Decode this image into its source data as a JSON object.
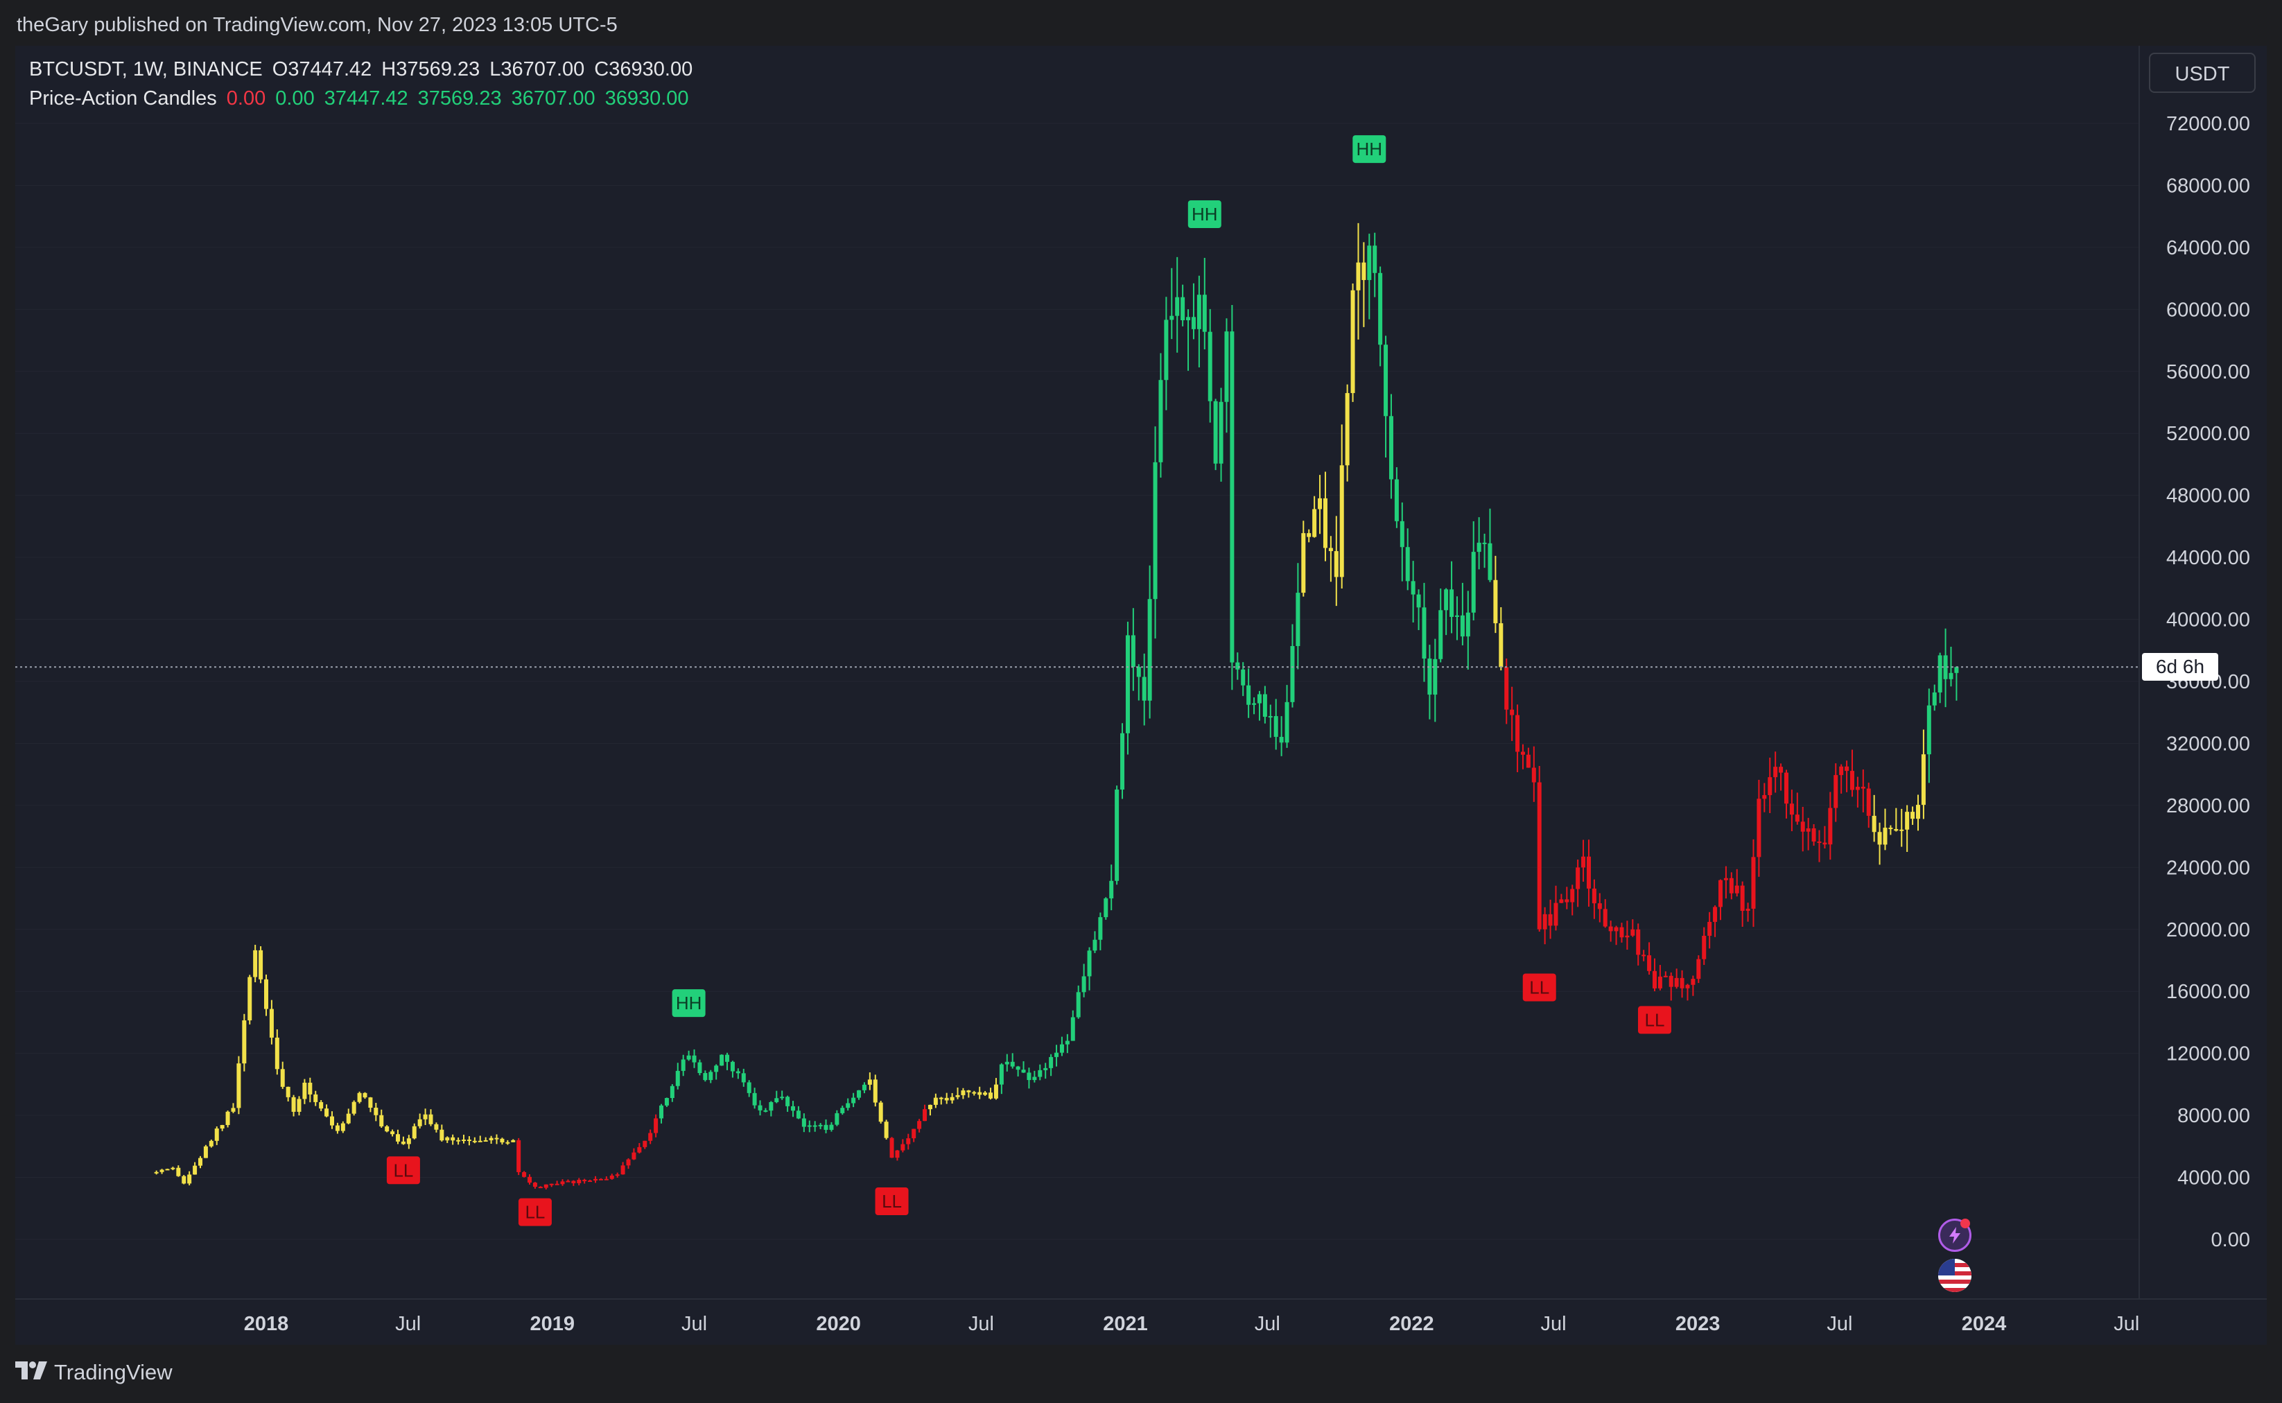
{
  "header": {
    "published_line": "theGary published on TradingView.com, Nov 27, 2023 13:05 UTC-5"
  },
  "legend": {
    "symbol_line": [
      "BTCUSDT, 1W, BINANCE",
      "O37447.42",
      "H37569.23",
      "L36707.00",
      "C36930.00"
    ],
    "indicator_name": "Price-Action Candles",
    "indicator_values": [
      {
        "text": "0.00",
        "color": "#f23645"
      },
      {
        "text": "0.00",
        "color": "#22d07a"
      },
      {
        "text": "37447.42",
        "color": "#22d07a"
      },
      {
        "text": "37569.23",
        "color": "#22d07a"
      },
      {
        "text": "36707.00",
        "color": "#22d07a"
      },
      {
        "text": "36930.00",
        "color": "#22d07a"
      }
    ]
  },
  "toolbar": {
    "currency_label": "USDT",
    "countdown_label": "6d 6h"
  },
  "icons": {
    "alert": "lightning-icon",
    "flag": "us-flag-icon",
    "logo": "tradingview-logo-icon"
  },
  "footer": {
    "brand": "TradingView"
  },
  "colors": {
    "background": "#1c1f2a",
    "bull": "#22d07a",
    "bear": "#e8141d",
    "neutral": "#f2e14a",
    "axis_text": "#d1d4dc"
  },
  "chart_data": {
    "type": "candlestick",
    "title": "BTCUSDT, 1W, BINANCE",
    "x_start": "2017-08-14",
    "x_end": "2023-11-27",
    "x_ticks": [
      {
        "date": "2018-01-01",
        "label": "2018",
        "bold": true
      },
      {
        "date": "2018-07-01",
        "label": "Jul",
        "bold": false
      },
      {
        "date": "2019-01-01",
        "label": "2019",
        "bold": true
      },
      {
        "date": "2019-07-01",
        "label": "Jul",
        "bold": false
      },
      {
        "date": "2020-01-01",
        "label": "2020",
        "bold": true
      },
      {
        "date": "2020-07-01",
        "label": "Jul",
        "bold": false
      },
      {
        "date": "2021-01-01",
        "label": "2021",
        "bold": true
      },
      {
        "date": "2021-07-01",
        "label": "Jul",
        "bold": false
      },
      {
        "date": "2022-01-01",
        "label": "2022",
        "bold": true
      },
      {
        "date": "2022-07-01",
        "label": "Jul",
        "bold": false
      },
      {
        "date": "2023-01-01",
        "label": "2023",
        "bold": true
      },
      {
        "date": "2023-07-01",
        "label": "Jul",
        "bold": false
      },
      {
        "date": "2024-01-01",
        "label": "2024",
        "bold": true
      },
      {
        "date": "2024-07-01",
        "label": "Jul",
        "bold": false
      }
    ],
    "y_ticks": [
      "72000.00",
      "68000.00",
      "64000.00",
      "60000.00",
      "56000.00",
      "52000.00",
      "48000.00",
      "44000.00",
      "40000.00",
      "36000.00",
      "32000.00",
      "28000.00",
      "24000.00",
      "20000.00",
      "16000.00",
      "12000.00",
      "8000.00",
      "4000.00",
      "0.00"
    ],
    "ylim": [
      0,
      72000
    ],
    "current_price": 36930,
    "path": [
      {
        "date": "2017-08-14",
        "close": 4300,
        "state": "neutral"
      },
      {
        "date": "2017-09-04",
        "close": 4500,
        "state": "neutral"
      },
      {
        "date": "2017-09-18",
        "close": 3600,
        "state": "neutral"
      },
      {
        "date": "2017-10-09",
        "close": 5300,
        "state": "neutral"
      },
      {
        "date": "2017-10-30",
        "close": 7000,
        "state": "neutral"
      },
      {
        "date": "2017-11-20",
        "close": 8500,
        "state": "neutral"
      },
      {
        "date": "2017-12-04",
        "close": 14000,
        "state": "neutral"
      },
      {
        "date": "2017-12-18",
        "close": 19000,
        "state": "neutral"
      },
      {
        "date": "2018-01-01",
        "close": 15000,
        "state": "neutral"
      },
      {
        "date": "2018-01-15",
        "close": 11000,
        "state": "neutral"
      },
      {
        "date": "2018-02-05",
        "close": 8000,
        "state": "neutral"
      },
      {
        "date": "2018-02-19",
        "close": 10000,
        "state": "neutral"
      },
      {
        "date": "2018-03-12",
        "close": 8500,
        "state": "neutral"
      },
      {
        "date": "2018-04-02",
        "close": 6900,
        "state": "neutral"
      },
      {
        "date": "2018-05-01",
        "close": 9500,
        "state": "neutral"
      },
      {
        "date": "2018-06-01",
        "close": 7200,
        "state": "neutral"
      },
      {
        "date": "2018-06-25",
        "close": 6200,
        "state": "neutral"
      },
      {
        "date": "2018-07-23",
        "close": 8200,
        "state": "neutral"
      },
      {
        "date": "2018-08-13",
        "close": 6400,
        "state": "neutral"
      },
      {
        "date": "2018-09-10",
        "close": 6500,
        "state": "neutral"
      },
      {
        "date": "2018-10-15",
        "close": 6400,
        "state": "neutral"
      },
      {
        "date": "2018-11-12",
        "close": 6300,
        "state": "neutral"
      },
      {
        "date": "2018-11-19",
        "close": 4300,
        "state": "bear"
      },
      {
        "date": "2018-12-10",
        "close": 3300,
        "state": "bear"
      },
      {
        "date": "2019-01-07",
        "close": 3600,
        "state": "bear"
      },
      {
        "date": "2019-02-18",
        "close": 3800,
        "state": "bear"
      },
      {
        "date": "2019-03-25",
        "close": 4100,
        "state": "bear"
      },
      {
        "date": "2019-04-08",
        "close": 5200,
        "state": "bear"
      },
      {
        "date": "2019-05-06",
        "close": 7000,
        "state": "bear"
      },
      {
        "date": "2019-05-20",
        "close": 8700,
        "state": "bull"
      },
      {
        "date": "2019-06-17",
        "close": 11500,
        "state": "bull"
      },
      {
        "date": "2019-06-24",
        "close": 12200,
        "state": "bull"
      },
      {
        "date": "2019-07-15",
        "close": 10400,
        "state": "bull"
      },
      {
        "date": "2019-08-05",
        "close": 11600,
        "state": "bull"
      },
      {
        "date": "2019-09-02",
        "close": 10300,
        "state": "bull"
      },
      {
        "date": "2019-09-23",
        "close": 8200,
        "state": "bull"
      },
      {
        "date": "2019-10-21",
        "close": 9300,
        "state": "bull"
      },
      {
        "date": "2019-11-18",
        "close": 7300,
        "state": "bull"
      },
      {
        "date": "2019-12-16",
        "close": 7200,
        "state": "bull"
      },
      {
        "date": "2020-02-10",
        "close": 10100,
        "state": "neutral"
      },
      {
        "date": "2020-03-09",
        "close": 5400,
        "state": "bear"
      },
      {
        "date": "2020-04-06",
        "close": 7100,
        "state": "bear"
      },
      {
        "date": "2020-04-27",
        "close": 8800,
        "state": "neutral"
      },
      {
        "date": "2020-06-01",
        "close": 9500,
        "state": "neutral"
      },
      {
        "date": "2020-07-13",
        "close": 9200,
        "state": "neutral"
      },
      {
        "date": "2020-07-27",
        "close": 11300,
        "state": "bull"
      },
      {
        "date": "2020-09-07",
        "close": 10400,
        "state": "bull"
      },
      {
        "date": "2020-10-19",
        "close": 13000,
        "state": "bull"
      },
      {
        "date": "2020-11-16",
        "close": 18500,
        "state": "bull"
      },
      {
        "date": "2020-12-14",
        "close": 23800,
        "state": "bull"
      },
      {
        "date": "2021-01-04",
        "close": 38000,
        "state": "bull"
      },
      {
        "date": "2021-01-25",
        "close": 34000,
        "state": "bull"
      },
      {
        "date": "2021-02-15",
        "close": 57000,
        "state": "bull"
      },
      {
        "date": "2021-03-08",
        "close": 61000,
        "state": "bull"
      },
      {
        "date": "2021-04-12",
        "close": 60000,
        "state": "bull"
      },
      {
        "date": "2021-04-26",
        "close": 50000,
        "state": "bull"
      },
      {
        "date": "2021-05-10",
        "close": 58000,
        "state": "bull"
      },
      {
        "date": "2021-05-17",
        "close": 37000,
        "state": "bull"
      },
      {
        "date": "2021-06-14",
        "close": 35000,
        "state": "bull"
      },
      {
        "date": "2021-07-19",
        "close": 32000,
        "state": "bull"
      },
      {
        "date": "2021-08-16",
        "close": 45000,
        "state": "neutral"
      },
      {
        "date": "2021-09-06",
        "close": 47000,
        "state": "neutral"
      },
      {
        "date": "2021-09-27",
        "close": 43000,
        "state": "neutral"
      },
      {
        "date": "2021-10-18",
        "close": 61000,
        "state": "neutral"
      },
      {
        "date": "2021-11-08",
        "close": 65000,
        "state": "bull"
      },
      {
        "date": "2021-11-22",
        "close": 57000,
        "state": "bull"
      },
      {
        "date": "2021-12-06",
        "close": 49000,
        "state": "bull"
      },
      {
        "date": "2022-01-03",
        "close": 42000,
        "state": "bull"
      },
      {
        "date": "2022-01-24",
        "close": 36000,
        "state": "bull"
      },
      {
        "date": "2022-02-14",
        "close": 42000,
        "state": "bull"
      },
      {
        "date": "2022-03-07",
        "close": 39000,
        "state": "bull"
      },
      {
        "date": "2022-03-28",
        "close": 46000,
        "state": "bull"
      },
      {
        "date": "2022-04-18",
        "close": 40000,
        "state": "neutral"
      },
      {
        "date": "2022-05-02",
        "close": 34000,
        "state": "bear"
      },
      {
        "date": "2022-06-06",
        "close": 29500,
        "state": "bear"
      },
      {
        "date": "2022-06-13",
        "close": 20000,
        "state": "bear"
      },
      {
        "date": "2022-07-11",
        "close": 21500,
        "state": "bear"
      },
      {
        "date": "2022-08-08",
        "close": 24000,
        "state": "bear"
      },
      {
        "date": "2022-09-05",
        "close": 20000,
        "state": "bear"
      },
      {
        "date": "2022-10-10",
        "close": 19500,
        "state": "bear"
      },
      {
        "date": "2022-11-07",
        "close": 16500,
        "state": "bear"
      },
      {
        "date": "2022-12-26",
        "close": 16600,
        "state": "bear"
      },
      {
        "date": "2023-01-16",
        "close": 21000,
        "state": "bear"
      },
      {
        "date": "2023-02-06",
        "close": 23500,
        "state": "bear"
      },
      {
        "date": "2023-03-06",
        "close": 21000,
        "state": "bear"
      },
      {
        "date": "2023-03-20",
        "close": 28000,
        "state": "bear"
      },
      {
        "date": "2023-04-10",
        "close": 30000,
        "state": "bear"
      },
      {
        "date": "2023-05-08",
        "close": 27000,
        "state": "bear"
      },
      {
        "date": "2023-06-12",
        "close": 26000,
        "state": "bear"
      },
      {
        "date": "2023-06-26",
        "close": 30500,
        "state": "bear"
      },
      {
        "date": "2023-07-31",
        "close": 29200,
        "state": "bear"
      },
      {
        "date": "2023-08-14",
        "close": 26000,
        "state": "neutral"
      },
      {
        "date": "2023-09-11",
        "close": 26500,
        "state": "neutral"
      },
      {
        "date": "2023-10-09",
        "close": 27500,
        "state": "neutral"
      },
      {
        "date": "2023-10-23",
        "close": 34500,
        "state": "bull"
      },
      {
        "date": "2023-11-06",
        "close": 37000,
        "state": "bull"
      },
      {
        "date": "2023-11-27",
        "close": 36930,
        "state": "bull"
      }
    ],
    "annotations": [
      {
        "label": "LL",
        "date": "2018-06-25",
        "price": 5800,
        "kind": "bear"
      },
      {
        "label": "LL",
        "date": "2018-12-10",
        "price": 3100,
        "kind": "bear"
      },
      {
        "label": "HH",
        "date": "2019-06-24",
        "price": 13900,
        "kind": "bull"
      },
      {
        "label": "LL",
        "date": "2020-03-09",
        "price": 3800,
        "kind": "bear"
      },
      {
        "label": "HH",
        "date": "2021-04-12",
        "price": 64800,
        "kind": "bull"
      },
      {
        "label": "HH",
        "date": "2021-11-08",
        "price": 69000,
        "kind": "bull"
      },
      {
        "label": "LL",
        "date": "2022-06-13",
        "price": 17600,
        "kind": "bear"
      },
      {
        "label": "LL",
        "date": "2022-11-07",
        "price": 15500,
        "kind": "bear"
      }
    ]
  }
}
